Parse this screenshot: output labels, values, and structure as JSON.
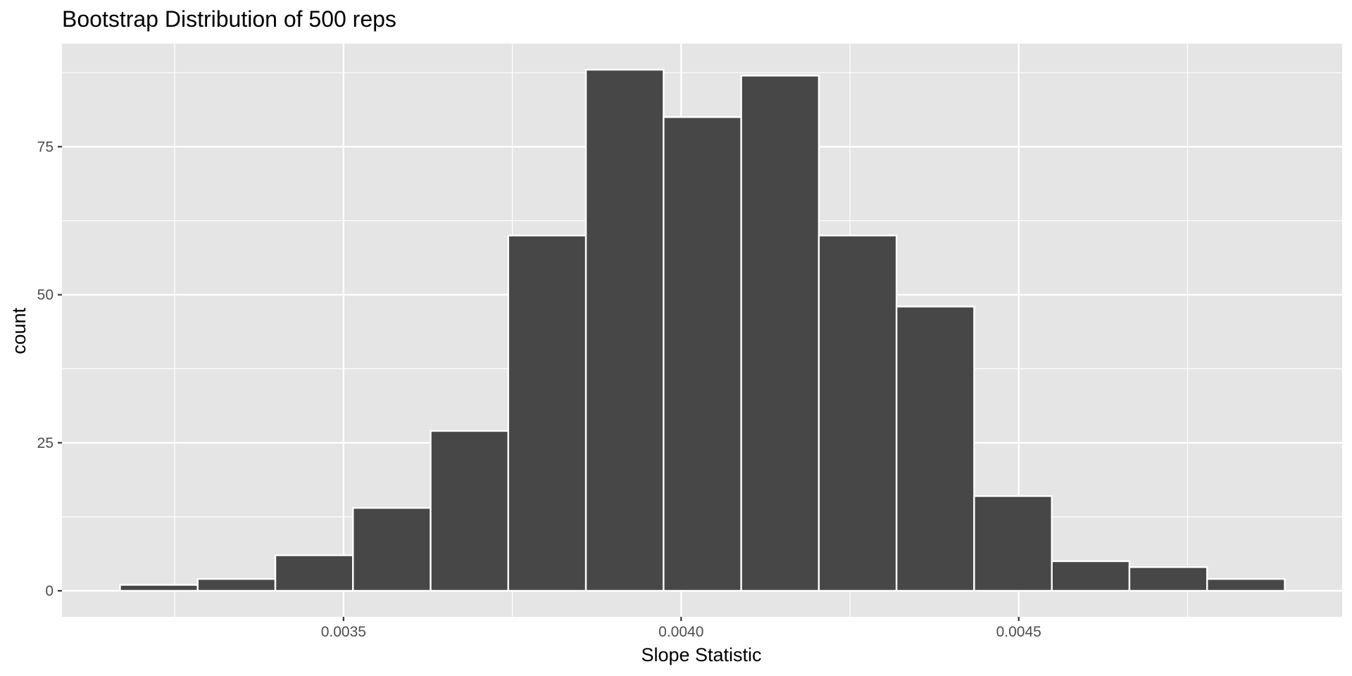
{
  "chart_data": {
    "type": "bar",
    "subtype": "histogram",
    "title": "Bootstrap Distribution of 500 reps",
    "xlabel": "Slope Statistic",
    "ylabel": "count",
    "bin_width": 0.000115,
    "bins": [
      {
        "x0": 0.003169,
        "x1": 0.003284,
        "count": 1
      },
      {
        "x0": 0.003284,
        "x1": 0.003399,
        "count": 2
      },
      {
        "x0": 0.003399,
        "x1": 0.003514,
        "count": 6
      },
      {
        "x0": 0.003514,
        "x1": 0.003629,
        "count": 14
      },
      {
        "x0": 0.003629,
        "x1": 0.003744,
        "count": 27
      },
      {
        "x0": 0.003744,
        "x1": 0.003859,
        "count": 60
      },
      {
        "x0": 0.003859,
        "x1": 0.003974,
        "count": 88
      },
      {
        "x0": 0.003974,
        "x1": 0.004089,
        "count": 80
      },
      {
        "x0": 0.004089,
        "x1": 0.004204,
        "count": 87
      },
      {
        "x0": 0.004204,
        "x1": 0.004319,
        "count": 60
      },
      {
        "x0": 0.004319,
        "x1": 0.004434,
        "count": 48
      },
      {
        "x0": 0.004434,
        "x1": 0.004549,
        "count": 16
      },
      {
        "x0": 0.004549,
        "x1": 0.004664,
        "count": 5
      },
      {
        "x0": 0.004664,
        "x1": 0.004779,
        "count": 4
      },
      {
        "x0": 0.004779,
        "x1": 0.004894,
        "count": 2
      }
    ],
    "xlim": [
      0.003083,
      0.004979
    ],
    "ylim": [
      -4.4,
      92.4
    ],
    "x_major_ticks": [
      0.0035,
      0.004,
      0.0045
    ],
    "x_tick_labels": [
      "0.0035",
      "0.0040",
      "0.0045"
    ],
    "x_minor_ticks": [
      0.00325,
      0.00375,
      0.00425,
      0.00475
    ],
    "y_major_ticks": [
      0,
      25,
      50,
      75
    ],
    "y_tick_labels": [
      "0",
      "25",
      "50",
      "75"
    ],
    "y_minor_ticks": [
      12.5,
      37.5,
      62.5,
      87.5
    ],
    "grid": true,
    "legend": "none",
    "colors": {
      "panel_background": "#e5e5e5",
      "grid_line": "#ffffff",
      "bar_fill": "#474747",
      "bar_outline": "#ffffff",
      "tick_text": "#4d4d4d",
      "tick_mark": "#333333"
    }
  }
}
